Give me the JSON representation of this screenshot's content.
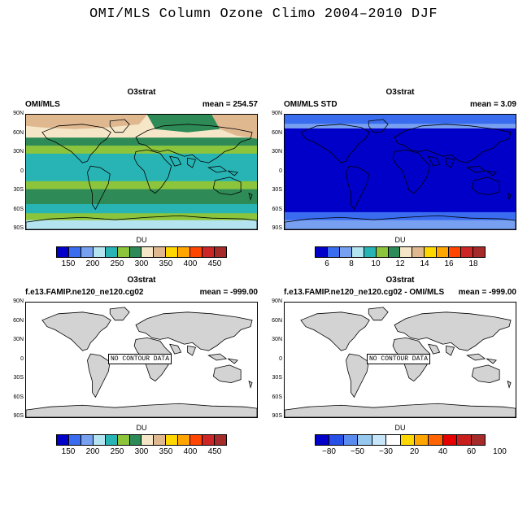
{
  "figure": {
    "title": "OMI/MLS Column Ozone Climo 2004–2010 DJF"
  },
  "colors": {
    "land": "#d3d3d3",
    "du_levels": [
      "#0000c8",
      "#3a6cf0",
      "#78a0f0",
      "#b4e4f0",
      "#28b4b4",
      "#8cc43c",
      "#2e8b57",
      "#f5e6c8",
      "#e0b890",
      "#ffd700",
      "#ffa500",
      "#ff4500",
      "#cd2626",
      "#a52a2a"
    ],
    "std_levels": [
      "#0000c8",
      "#3a6cf0",
      "#78a0f0",
      "#b4e4f0",
      "#28b4b4",
      "#8cc43c",
      "#2e8b57",
      "#f5e6c8",
      "#e0b890",
      "#ffd700",
      "#ffa500",
      "#ff4500",
      "#cd2626",
      "#a52a2a"
    ],
    "diff_levels": [
      "#0000c8",
      "#2850e6",
      "#5a8cf0",
      "#96c8f0",
      "#c8e6fa",
      "#ffffff",
      "#ffd700",
      "#ffa500",
      "#ff6400",
      "#e60000",
      "#c81e1e",
      "#a52a2a"
    ]
  },
  "panels": [
    {
      "title": "O3strat",
      "left": "OMI/MLS",
      "right": "mean = 254.57",
      "units": "DU",
      "labels": [
        "150",
        "200",
        "250",
        "300",
        "350",
        "400",
        "450"
      ],
      "palette": "du_levels",
      "nodata": ""
    },
    {
      "title": "O3strat",
      "left": "OMI/MLS STD",
      "right": "mean =   3.09",
      "units": "DU",
      "labels": [
        "6",
        "8",
        "10",
        "12",
        "14",
        "16",
        "18"
      ],
      "palette": "std_levels",
      "nodata": ""
    },
    {
      "title": "O3strat",
      "left": "f.e13.FAMIP.ne120_ne120.cg02",
      "right": "mean = -999.00",
      "units": "DU",
      "labels": [
        "150",
        "200",
        "250",
        "300",
        "350",
        "400",
        "450"
      ],
      "palette": "du_levels",
      "nodata": "NO CONTOUR DATA"
    },
    {
      "title": "O3strat",
      "left": "f.e13.FAMIP.ne120_ne120.cg02 - OMI/MLS",
      "right": "mean = -999.00",
      "units": "DU",
      "labels": [
        "−80",
        "−50",
        "−30",
        "20",
        "40",
        "60",
        "100"
      ],
      "palette": "diff_levels",
      "nodata": "NO CONTOUR DATA"
    }
  ],
  "lat_labels": [
    "90N",
    "60N",
    "30N",
    "0",
    "30S",
    "60S",
    "90S"
  ]
}
